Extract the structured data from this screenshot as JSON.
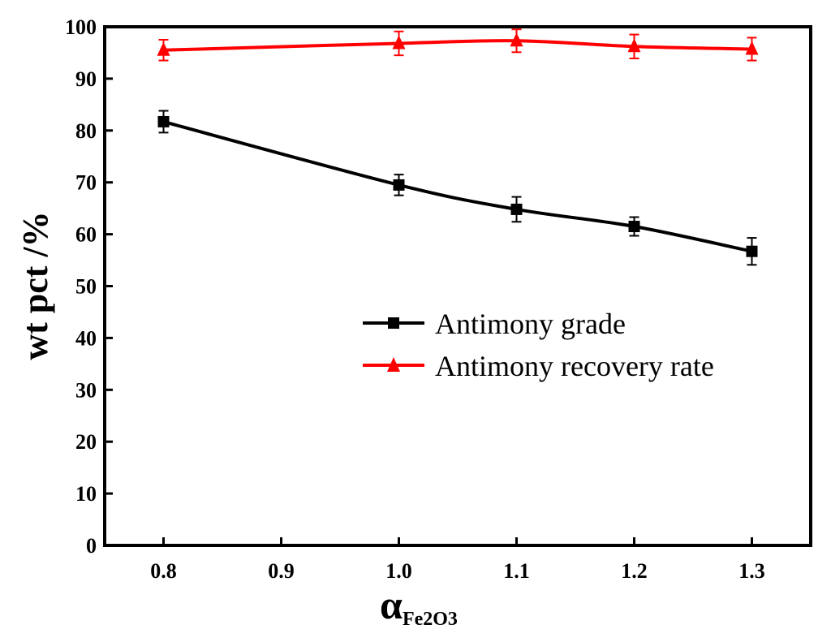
{
  "chart_data": {
    "type": "line",
    "x": [
      0.8,
      1.0,
      1.1,
      1.2,
      1.3
    ],
    "xlim": [
      0.75,
      1.35
    ],
    "ylim": [
      0,
      100
    ],
    "xticks": [
      "0.8",
      "0.9",
      "1.0",
      "1.1",
      "1.2",
      "1.3"
    ],
    "xtick_values": [
      0.8,
      0.9,
      1.0,
      1.1,
      1.2,
      1.3
    ],
    "yticks": [
      "0",
      "10",
      "20",
      "30",
      "40",
      "50",
      "60",
      "70",
      "80",
      "90",
      "100"
    ],
    "ytick_values": [
      0,
      10,
      20,
      30,
      40,
      50,
      60,
      70,
      80,
      90,
      100
    ],
    "ylabel": "wt pct /%",
    "xlabel_main": "α",
    "xlabel_sub": "Fe2O3",
    "legend_position": "center-right",
    "series": [
      {
        "name": "Antimony grade",
        "marker": "square",
        "color": "#000000",
        "values": [
          81.7,
          69.5,
          64.8,
          61.5,
          56.7
        ],
        "errors": [
          2.1,
          2.0,
          2.4,
          1.8,
          2.6
        ]
      },
      {
        "name": "Antimony recovery rate",
        "marker": "triangle",
        "color": "#ff0000",
        "values": [
          95.5,
          96.8,
          97.3,
          96.2,
          95.7
        ],
        "errors": [
          2.0,
          2.3,
          2.2,
          2.3,
          2.2
        ]
      }
    ]
  }
}
